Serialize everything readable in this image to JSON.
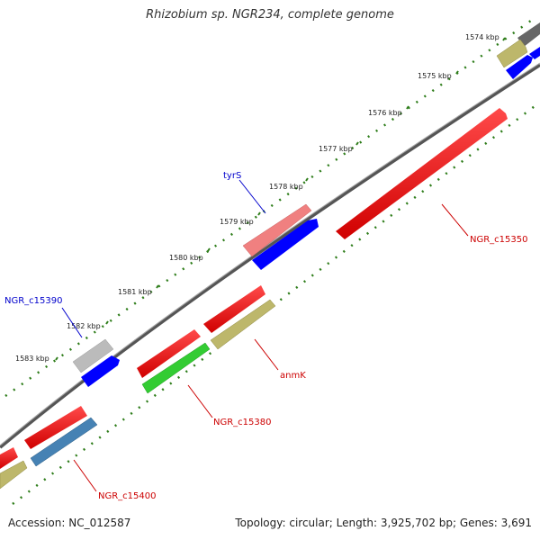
{
  "title": "Rhizobium sp. NGR234, complete genome",
  "footer": {
    "accession": "Accession: NC_012587",
    "summary": "Topology: circular; Length: 3,925,702 bp; Genes: 3,691"
  },
  "colors": {
    "backbone": "#777777",
    "tick": "#2e7d1a",
    "cds_red": "#ff0000",
    "cds_blue": "#0000ff",
    "cds_green": "#33cc33",
    "cds_olive": "#bdb76b",
    "cds_steel": "#4682b4",
    "cds_grey": "#bbbbbb",
    "cds_pink": "#f08080",
    "label_forward": "#0000cc",
    "label_reverse": "#cc0000"
  },
  "ticks": [
    {
      "label": "1574 kbp"
    },
    {
      "label": "1575 kbp"
    },
    {
      "label": "1576 kbp"
    },
    {
      "label": "1577 kbp"
    },
    {
      "label": "1578 kbp"
    },
    {
      "label": "1579 kbp"
    },
    {
      "label": "1580 kbp"
    },
    {
      "label": "1581 kbp"
    },
    {
      "label": "1582 kbp"
    },
    {
      "label": "1583 kbp"
    }
  ],
  "gene_labels": {
    "tyrS": "tyrS",
    "ngr_c15390": "NGR_c15390",
    "ngr_c15350": "NGR_c15350",
    "anmK": "anmK",
    "ngr_c15380": "NGR_c15380",
    "ngr_c15400": "NGR_c15400"
  }
}
